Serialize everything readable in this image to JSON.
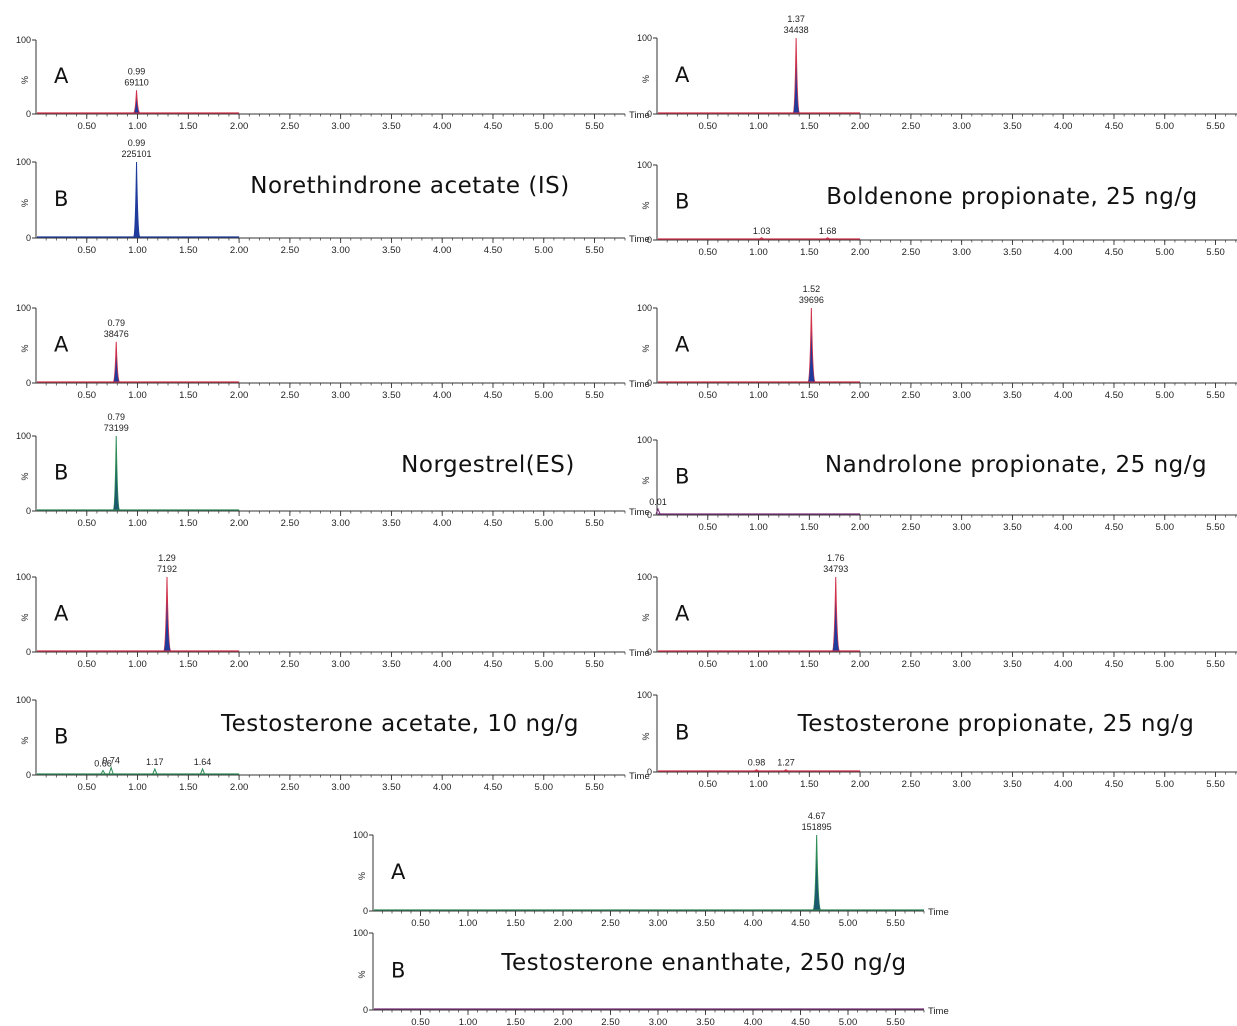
{
  "labels": {
    "x_axis": "Time",
    "y_unit": "%",
    "y_top": "100",
    "y_zero": "0"
  },
  "colors": {
    "fill": "#1f3b9c",
    "red_trace": "#d0324b",
    "green_trace": "#2e8b57",
    "green_fill": "#1c5a6e",
    "purple_trace": "#7a2e7a",
    "axis": "#333333"
  },
  "chart_data": [
    {
      "type": "line",
      "title": "Norethindrone acetate (IS)",
      "traces": [
        {
          "trace_label": "A",
          "x_range": [
            0,
            5.8
          ],
          "x_ticks": [
            "0.50",
            "1.00",
            "1.50",
            "2.00",
            "2.50",
            "3.00",
            "3.50",
            "4.00",
            "4.50",
            "5.00",
            "5.50"
          ],
          "data_extent": 2.0,
          "color": "red",
          "peaks": [
            {
              "rt": 0.99,
              "height": 32,
              "width": 0.018,
              "label_rt": "0.99",
              "label_area": "69110",
              "filled": true
            }
          ]
        },
        {
          "trace_label": "B",
          "x_range": [
            0,
            5.8
          ],
          "x_ticks": [
            "0.50",
            "1.00",
            "1.50",
            "2.00",
            "2.50",
            "3.00",
            "3.50",
            "4.00",
            "4.50",
            "5.00",
            "5.50"
          ],
          "data_extent": 2.0,
          "color": "navy",
          "peaks": [
            {
              "rt": 0.99,
              "height": 100,
              "width": 0.016,
              "label_rt": "0.99",
              "label_area": "225101",
              "filled": true
            }
          ]
        }
      ]
    },
    {
      "type": "line",
      "title": "Boldenone propionate, 25 ng/g",
      "traces": [
        {
          "trace_label": "A",
          "x_range": [
            0,
            5.8
          ],
          "x_ticks": [
            "0.50",
            "1.00",
            "1.50",
            "2.00",
            "2.50",
            "3.00",
            "3.50",
            "4.00",
            "4.50",
            "5.00",
            "5.50"
          ],
          "data_extent": 2.0,
          "color": "red",
          "peaks": [
            {
              "rt": 1.37,
              "height": 100,
              "width": 0.02,
              "label_rt": "1.37",
              "label_area": "34438",
              "filled": true
            }
          ]
        },
        {
          "trace_label": "B",
          "x_range": [
            0,
            5.8
          ],
          "x_ticks": [
            "0.50",
            "1.00",
            "1.50",
            "2.00",
            "2.50",
            "3.00",
            "3.50",
            "4.00",
            "4.50",
            "5.00",
            "5.50"
          ],
          "data_extent": 2.0,
          "color": "red",
          "peaks": [
            {
              "rt": 1.03,
              "height": 3,
              "width": 0.02,
              "label_rt": "1.03",
              "filled": false
            },
            {
              "rt": 1.68,
              "height": 3,
              "width": 0.02,
              "label_rt": "1.68",
              "filled": false
            }
          ]
        }
      ]
    },
    {
      "type": "line",
      "title": "Norgestrel(ES)",
      "traces": [
        {
          "trace_label": "A",
          "x_range": [
            0,
            5.8
          ],
          "x_ticks": [
            "0.50",
            "1.00",
            "1.50",
            "2.00",
            "2.50",
            "3.00",
            "3.50",
            "4.00",
            "4.50",
            "5.00",
            "5.50"
          ],
          "data_extent": 2.0,
          "color": "red",
          "peaks": [
            {
              "rt": 0.79,
              "height": 55,
              "width": 0.02,
              "label_rt": "0.79",
              "label_area": "38476",
              "filled": true
            }
          ]
        },
        {
          "trace_label": "B",
          "x_range": [
            0,
            5.8
          ],
          "x_ticks": [
            "0.50",
            "1.00",
            "1.50",
            "2.00",
            "2.50",
            "3.00",
            "3.50",
            "4.00",
            "4.50",
            "5.00",
            "5.50"
          ],
          "data_extent": 2.0,
          "color": "green",
          "peaks": [
            {
              "rt": 0.79,
              "height": 100,
              "width": 0.012,
              "label_rt": "0.79",
              "label_area": "73199",
              "filled": true
            }
          ]
        }
      ]
    },
    {
      "type": "line",
      "title": "Nandrolone propionate, 25 ng/g",
      "traces": [
        {
          "trace_label": "A",
          "x_range": [
            0,
            5.8
          ],
          "x_ticks": [
            "0.50",
            "1.00",
            "1.50",
            "2.00",
            "2.50",
            "3.00",
            "3.50",
            "4.00",
            "4.50",
            "5.00",
            "5.50"
          ],
          "data_extent": 2.0,
          "color": "red",
          "peaks": [
            {
              "rt": 1.52,
              "height": 100,
              "width": 0.022,
              "label_rt": "1.52",
              "label_area": "39696",
              "filled": true
            }
          ]
        },
        {
          "trace_label": "B",
          "x_range": [
            0,
            5.8
          ],
          "x_ticks": [
            "0.50",
            "1.00",
            "1.50",
            "2.00",
            "2.50",
            "3.00",
            "3.50",
            "4.00",
            "4.50",
            "5.00",
            "5.50"
          ],
          "data_extent": 2.0,
          "color": "purple",
          "peaks": [
            {
              "rt": 0.01,
              "height": 8,
              "width": 0.02,
              "label_rt": "0.01",
              "filled": false
            }
          ]
        }
      ]
    },
    {
      "type": "line",
      "title": "Testosterone acetate, 10 ng/g",
      "traces": [
        {
          "trace_label": "A",
          "x_range": [
            0,
            5.8
          ],
          "x_ticks": [
            "0.50",
            "1.00",
            "1.50",
            "2.00",
            "2.50",
            "3.00",
            "3.50",
            "4.00",
            "4.50",
            "5.00",
            "5.50"
          ],
          "data_extent": 2.0,
          "color": "red",
          "peaks": [
            {
              "rt": 1.29,
              "height": 100,
              "width": 0.022,
              "label_rt": "1.29",
              "label_area": "7192",
              "filled": true
            }
          ]
        },
        {
          "trace_label": "B",
          "x_range": [
            0,
            5.8
          ],
          "x_ticks": [
            "0.50",
            "1.00",
            "1.50",
            "2.00",
            "2.50",
            "3.00",
            "3.50",
            "4.00",
            "4.50",
            "5.00",
            "5.50"
          ],
          "data_extent": 2.0,
          "color": "green",
          "peaks": [
            {
              "rt": 0.66,
              "height": 6,
              "width": 0.02,
              "label_rt": "0.66",
              "filled": false
            },
            {
              "rt": 0.74,
              "height": 10,
              "width": 0.02,
              "label_rt": "0.74",
              "filled": false
            },
            {
              "rt": 1.17,
              "height": 8,
              "width": 0.02,
              "label_rt": "1.17",
              "filled": false
            },
            {
              "rt": 1.64,
              "height": 8,
              "width": 0.02,
              "label_rt": "1.64",
              "filled": false
            }
          ]
        }
      ]
    },
    {
      "type": "line",
      "title": "Testosterone propionate, 25 ng/g",
      "traces": [
        {
          "trace_label": "A",
          "x_range": [
            0,
            5.8
          ],
          "x_ticks": [
            "0.50",
            "1.00",
            "1.50",
            "2.00",
            "2.50",
            "3.00",
            "3.50",
            "4.00",
            "4.50",
            "5.00",
            "5.50"
          ],
          "data_extent": 2.0,
          "color": "red",
          "peaks": [
            {
              "rt": 1.76,
              "height": 100,
              "width": 0.022,
              "label_rt": "1.76",
              "label_area": "34793",
              "filled": true
            }
          ]
        },
        {
          "trace_label": "B",
          "x_range": [
            0,
            5.8
          ],
          "x_ticks": [
            "0.50",
            "1.00",
            "1.50",
            "2.00",
            "2.50",
            "3.00",
            "3.50",
            "4.00",
            "4.50",
            "5.00",
            "5.50"
          ],
          "data_extent": 2.0,
          "color": "red",
          "peaks": [
            {
              "rt": 0.98,
              "height": 3,
              "width": 0.02,
              "label_rt": "0.98",
              "filled": false
            },
            {
              "rt": 1.27,
              "height": 3,
              "width": 0.02,
              "label_rt": "1.27",
              "filled": false
            }
          ]
        }
      ]
    },
    {
      "type": "line",
      "title": "Testosterone enanthate, 250 ng/g",
      "traces": [
        {
          "trace_label": "A",
          "x_range": [
            0,
            5.8
          ],
          "x_ticks": [
            "0.50",
            "1.00",
            "1.50",
            "2.00",
            "2.50",
            "3.00",
            "3.50",
            "4.00",
            "4.50",
            "5.00",
            "5.50"
          ],
          "data_extent": 5.8,
          "color": "green",
          "peaks": [
            {
              "rt": 4.67,
              "height": 100,
              "width": 0.025,
              "label_rt": "4.67",
              "label_area": "151895",
              "filled": true
            }
          ]
        },
        {
          "trace_label": "B",
          "x_range": [
            0,
            5.8
          ],
          "x_ticks": [
            "0.50",
            "1.00",
            "1.50",
            "2.00",
            "2.50",
            "3.00",
            "3.50",
            "4.00",
            "4.50",
            "5.00",
            "5.50"
          ],
          "data_extent": 5.8,
          "color": "purple",
          "peaks": []
        }
      ]
    }
  ]
}
